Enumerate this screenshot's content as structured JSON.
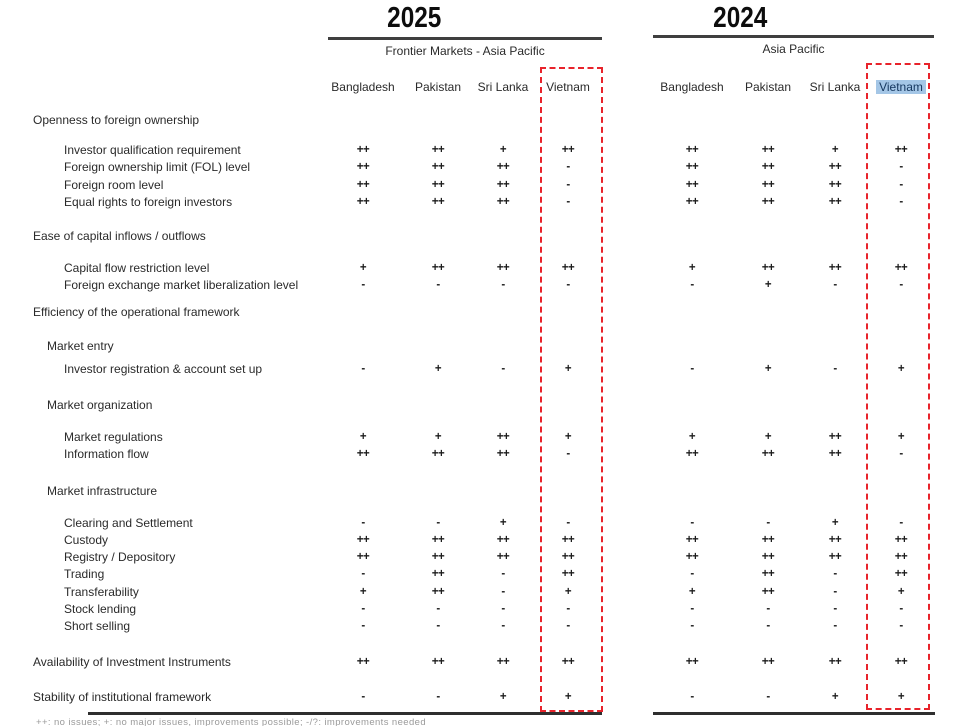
{
  "header": {
    "year_2025": "2025",
    "group_2025": "Frontier Markets - Asia Pacific",
    "countries_2025": [
      "Bangladesh",
      "Pakistan",
      "Sri Lanka",
      "Vietnam"
    ],
    "year_2024": "2024",
    "group_2024": "Asia Pacific",
    "countries_2024": [
      "Bangladesh",
      "Pakistan",
      "Sri Lanka",
      "Vietnam"
    ]
  },
  "rows": [
    {
      "label": "Openness to foreign ownership",
      "level": 1,
      "v2025": null,
      "v2024": null
    },
    {
      "label": "Investor qualification requirement",
      "level": 3,
      "v2025": [
        "++",
        "++",
        "+",
        "++"
      ],
      "v2024": [
        "++",
        "++",
        "+",
        "++"
      ]
    },
    {
      "label": "Foreign ownership limit (FOL) level",
      "level": 3,
      "v2025": [
        "++",
        "++",
        "++",
        "-"
      ],
      "v2024": [
        "++",
        "++",
        "++",
        "-"
      ]
    },
    {
      "label": "Foreign room level",
      "level": 3,
      "v2025": [
        "++",
        "++",
        "++",
        "-"
      ],
      "v2024": [
        "++",
        "++",
        "++",
        "-"
      ]
    },
    {
      "label": "Equal rights to foreign investors",
      "level": 3,
      "v2025": [
        "++",
        "++",
        "++",
        "-"
      ],
      "v2024": [
        "++",
        "++",
        "++",
        "-"
      ]
    },
    {
      "label": "Ease of capital inflows / outflows",
      "level": 1,
      "v2025": null,
      "v2024": null
    },
    {
      "label": "Capital flow restriction level",
      "level": 3,
      "v2025": [
        "+",
        "++",
        "++",
        "++"
      ],
      "v2024": [
        "+",
        "++",
        "++",
        "++"
      ]
    },
    {
      "label": "Foreign exchange market liberalization level",
      "level": 3,
      "v2025": [
        "-",
        "-",
        "-",
        "-"
      ],
      "v2024": [
        "-",
        "+",
        "-",
        "-"
      ]
    },
    {
      "label": "Efficiency of the operational framework",
      "level": 1,
      "v2025": null,
      "v2024": null
    },
    {
      "label": "Market entry",
      "level": 2,
      "v2025": null,
      "v2024": null
    },
    {
      "label": "Investor registration & account set up",
      "level": 3,
      "v2025": [
        "-",
        "+",
        "-",
        "+"
      ],
      "v2024": [
        "-",
        "+",
        "-",
        "+"
      ]
    },
    {
      "label": "Market organization",
      "level": 2,
      "v2025": null,
      "v2024": null
    },
    {
      "label": "Market regulations",
      "level": 3,
      "v2025": [
        "+",
        "+",
        "++",
        "+"
      ],
      "v2024": [
        "+",
        "+",
        "++",
        "+"
      ]
    },
    {
      "label": "Information flow",
      "level": 3,
      "v2025": [
        "++",
        "++",
        "++",
        "-"
      ],
      "v2024": [
        "++",
        "++",
        "++",
        "-"
      ]
    },
    {
      "label": "Market infrastructure",
      "level": 2,
      "v2025": null,
      "v2024": null
    },
    {
      "label": "Clearing and Settlement",
      "level": 3,
      "v2025": [
        "-",
        "-",
        "+",
        "-"
      ],
      "v2024": [
        "-",
        "-",
        "+",
        "-"
      ]
    },
    {
      "label": "Custody",
      "level": 3,
      "v2025": [
        "++",
        "++",
        "++",
        "++"
      ],
      "v2024": [
        "++",
        "++",
        "++",
        "++"
      ]
    },
    {
      "label": "Registry / Depository",
      "level": 3,
      "v2025": [
        "++",
        "++",
        "++",
        "++"
      ],
      "v2024": [
        "++",
        "++",
        "++",
        "++"
      ]
    },
    {
      "label": "Trading",
      "level": 3,
      "v2025": [
        "-",
        "++",
        "-",
        "++"
      ],
      "v2024": [
        "-",
        "++",
        "-",
        "++"
      ]
    },
    {
      "label": "Transferability",
      "level": 3,
      "v2025": [
        "+",
        "++",
        "-",
        "+"
      ],
      "v2024": [
        "+",
        "++",
        "-",
        "+"
      ]
    },
    {
      "label": "Stock lending",
      "level": 3,
      "v2025": [
        "-",
        "-",
        "-",
        "-"
      ],
      "v2024": [
        "-",
        "-",
        "-",
        "-"
      ]
    },
    {
      "label": "Short selling",
      "level": 3,
      "v2025": [
        "-",
        "-",
        "-",
        "-"
      ],
      "v2024": [
        "-",
        "-",
        "-",
        "-"
      ]
    },
    {
      "label": "Availability of Investment Instruments",
      "level": 1,
      "v2025": [
        "++",
        "++",
        "++",
        "++"
      ],
      "v2024": [
        "++",
        "++",
        "++",
        "++"
      ]
    },
    {
      "label": "Stability of institutional framework",
      "level": 1,
      "v2025": [
        "-",
        "-",
        "+",
        "+"
      ],
      "v2024": [
        "-",
        "-",
        "+",
        "+"
      ]
    }
  ],
  "footnote": "++: no issues; +: no major issues, improvements possible; -/?: improvements needed",
  "colors": {
    "vietnam_box_red": "#e8232b",
    "vietnam_2024_highlight": "#a4c6e6",
    "rule_dark": "#3f3f3f"
  }
}
